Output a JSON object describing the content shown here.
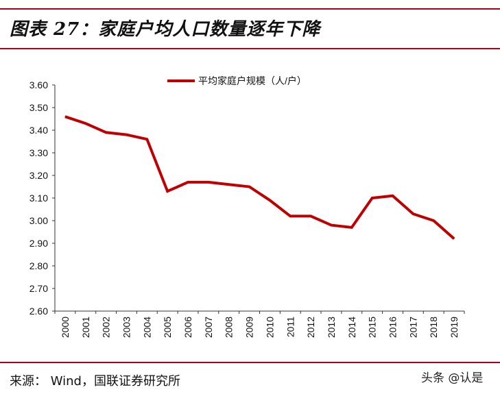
{
  "header": {
    "title": "图表 27：家庭户均人口数量逐年下降"
  },
  "footer": {
    "source": "来源：  Wind，国联证券研究所",
    "watermark": "头条 @认是"
  },
  "chart_data": {
    "type": "line",
    "title": "",
    "xlabel": "",
    "ylabel": "",
    "ylim": [
      2.6,
      3.6
    ],
    "yticks": [
      "2.60",
      "2.70",
      "2.80",
      "2.90",
      "3.00",
      "3.10",
      "3.20",
      "3.30",
      "3.40",
      "3.50",
      "3.60"
    ],
    "categories": [
      "2000",
      "2001",
      "2002",
      "2003",
      "2004",
      "2005",
      "2006",
      "2007",
      "2008",
      "2009",
      "2010",
      "2011",
      "2012",
      "2013",
      "2014",
      "2015",
      "2016",
      "2017",
      "2018",
      "2019"
    ],
    "series": [
      {
        "name": "平均家庭户规模（人/户）",
        "color": "#c00000",
        "values": [
          3.46,
          3.43,
          3.39,
          3.38,
          3.36,
          3.13,
          3.17,
          3.17,
          3.16,
          3.15,
          3.09,
          3.02,
          3.02,
          2.98,
          2.97,
          3.1,
          3.11,
          3.03,
          3.0,
          2.92
        ]
      }
    ],
    "grid": false,
    "legend": "top-center"
  }
}
